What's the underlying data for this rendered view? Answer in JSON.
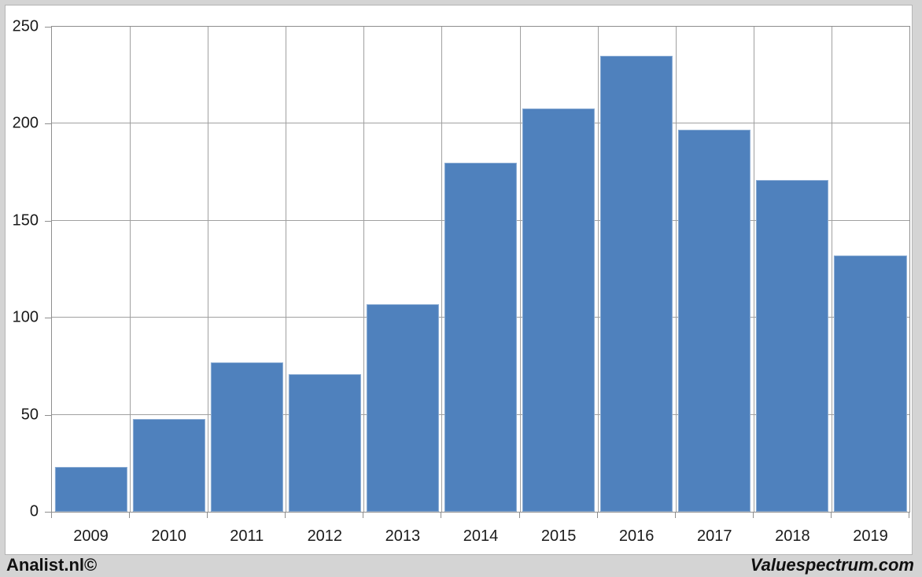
{
  "page": {
    "background_color": "#d4d4d4",
    "card_color": "#ffffff"
  },
  "footer": {
    "left_text": "Analist.nl©",
    "right_text": "Valuespectrum.com"
  },
  "chart_data": {
    "type": "bar",
    "title": "",
    "xlabel": "",
    "ylabel": "",
    "categories": [
      "2009",
      "2010",
      "2011",
      "2012",
      "2013",
      "2014",
      "2015",
      "2016",
      "2017",
      "2018",
      "2019"
    ],
    "values": [
      23,
      48,
      77,
      71,
      107,
      180,
      208,
      235,
      197,
      171,
      132
    ],
    "ylim": [
      0,
      250
    ],
    "yticks": [
      0,
      50,
      100,
      150,
      200,
      250
    ],
    "grid": true,
    "legend": false,
    "bar_color": "#4f81bd",
    "gridline_color": "#a0a0a0",
    "axis_color": "#8e8e8e",
    "tick_text_color": "#1a1a1a"
  }
}
